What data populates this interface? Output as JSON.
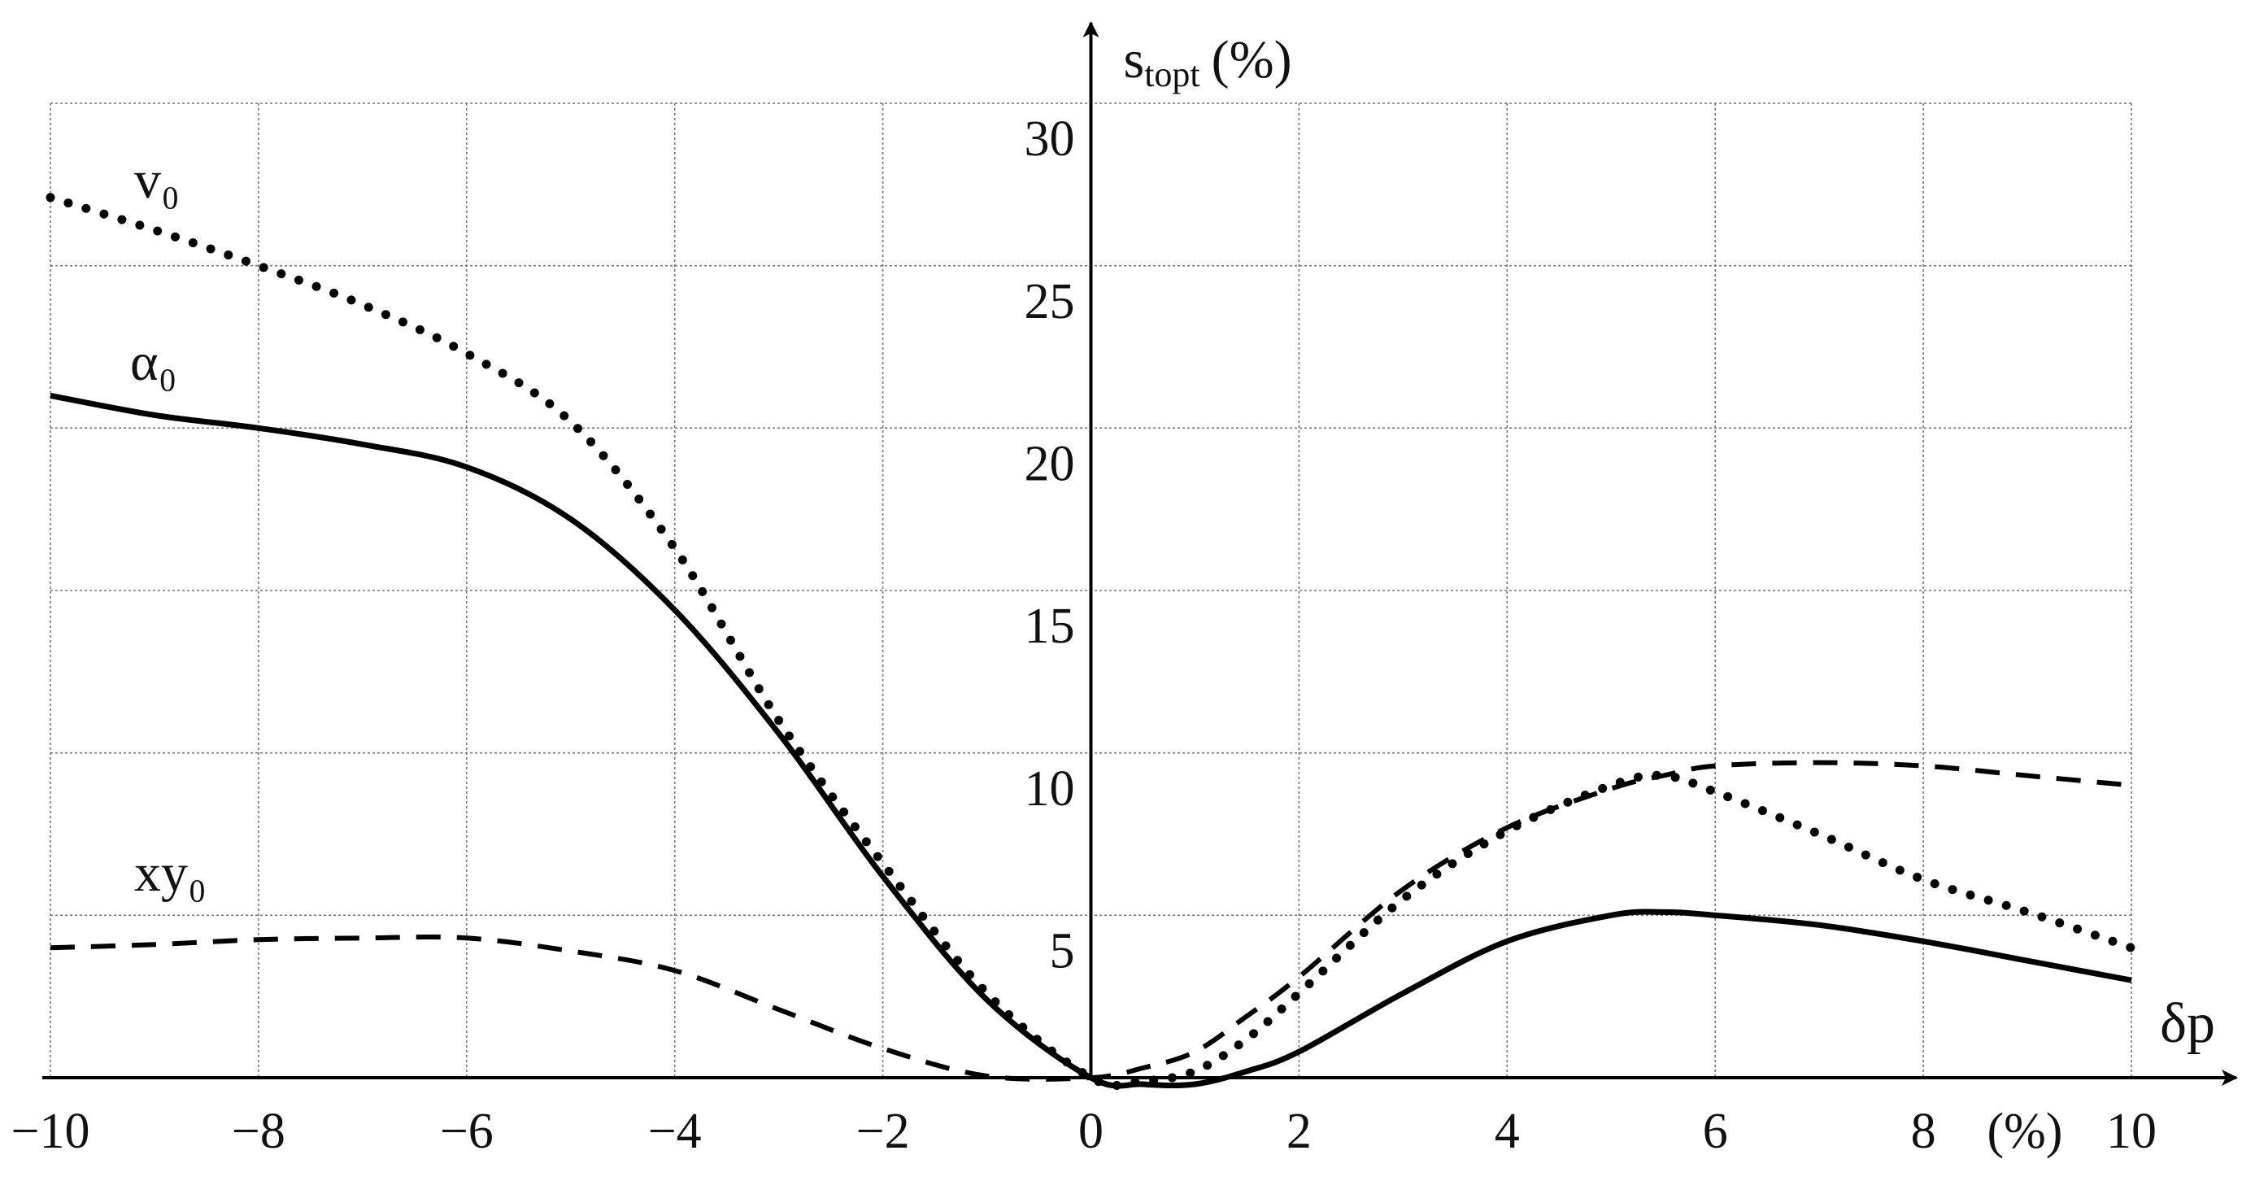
{
  "chart_data": {
    "type": "line",
    "x_label": "δp",
    "x_unit": "(%)",
    "y_label": {
      "base": "s",
      "sub": "topt",
      "unit": "(%)"
    },
    "x": [
      -10,
      -9,
      -8,
      -7,
      -6,
      -5,
      -4,
      -3,
      -2,
      -1,
      0,
      0.5,
      1,
      1.5,
      2,
      3,
      4,
      5,
      5.5,
      6,
      7,
      8,
      9,
      10
    ],
    "series": [
      {
        "name": "v₀",
        "color": "#000000",
        "style": "dotted",
        "values": [
          27.1,
          26.1,
          25.0,
          23.8,
          22.3,
          20.2,
          16.3,
          11.0,
          6.6,
          2.6,
          0,
          -0.1,
          0.2,
          1.2,
          2.6,
          5.5,
          7.6,
          9.0,
          9.3,
          8.8,
          7.5,
          6.1,
          5.1,
          4.0
        ]
      },
      {
        "name": "α₀",
        "color": "#000000",
        "style": "solid",
        "values": [
          21.0,
          20.4,
          20.0,
          19.5,
          18.8,
          17.2,
          14.4,
          10.6,
          6.2,
          2.4,
          0,
          -0.2,
          -0.2,
          0.2,
          0.8,
          2.6,
          4.2,
          5.0,
          5.1,
          5.0,
          4.7,
          4.2,
          3.6,
          3.0
        ]
      },
      {
        "name": "xy₀",
        "color": "#000000",
        "style": "dashed",
        "values": [
          4.0,
          4.1,
          4.25,
          4.3,
          4.3,
          3.9,
          3.3,
          2.1,
          0.9,
          0.05,
          0,
          0.3,
          0.8,
          1.9,
          3.1,
          5.8,
          7.7,
          8.9,
          9.3,
          9.6,
          9.7,
          9.6,
          9.3,
          9.0
        ]
      }
    ],
    "xlim": [
      -10,
      10
    ],
    "ylim": [
      0,
      30
    ],
    "xticks": [
      {
        "value": -10,
        "label": "−10"
      },
      {
        "value": -8,
        "label": "−8"
      },
      {
        "value": -6,
        "label": "−6"
      },
      {
        "value": -4,
        "label": "−4"
      },
      {
        "value": -2,
        "label": "−2"
      },
      0,
      2,
      4,
      6,
      8,
      10
    ],
    "yticks": [
      5,
      10,
      15,
      20,
      25,
      30
    ],
    "grid": true
  }
}
